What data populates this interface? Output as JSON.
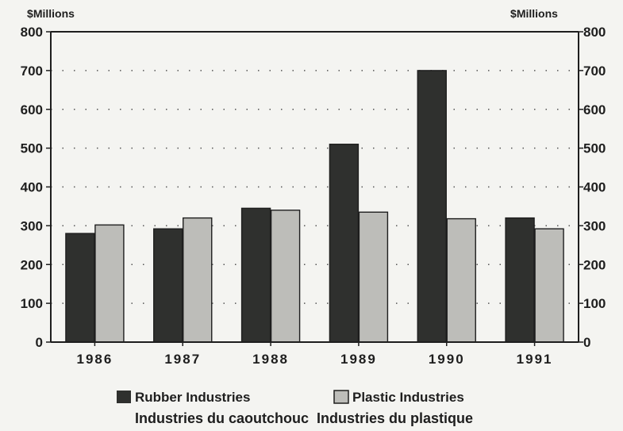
{
  "chart_data": {
    "type": "bar",
    "unit_left": "$Millions",
    "unit_right": "$Millions",
    "categories": [
      "1986",
      "1987",
      "1988",
      "1989",
      "1990",
      "1991"
    ],
    "series": [
      {
        "name": "Rubber Industries",
        "values": [
          280,
          292,
          345,
          510,
          700,
          320
        ],
        "color": "#2f302e"
      },
      {
        "name": "Plastic Industries",
        "values": [
          302,
          320,
          340,
          335,
          318,
          292
        ],
        "color": "#bdbdb9"
      }
    ],
    "ylim": [
      0,
      800
    ],
    "yticks": [
      0,
      100,
      200,
      300,
      400,
      500,
      600,
      700,
      800
    ],
    "grid": true,
    "legend_position": "bottom",
    "legend_translation": "Industries du caoutchouc  Industries du plastique"
  }
}
